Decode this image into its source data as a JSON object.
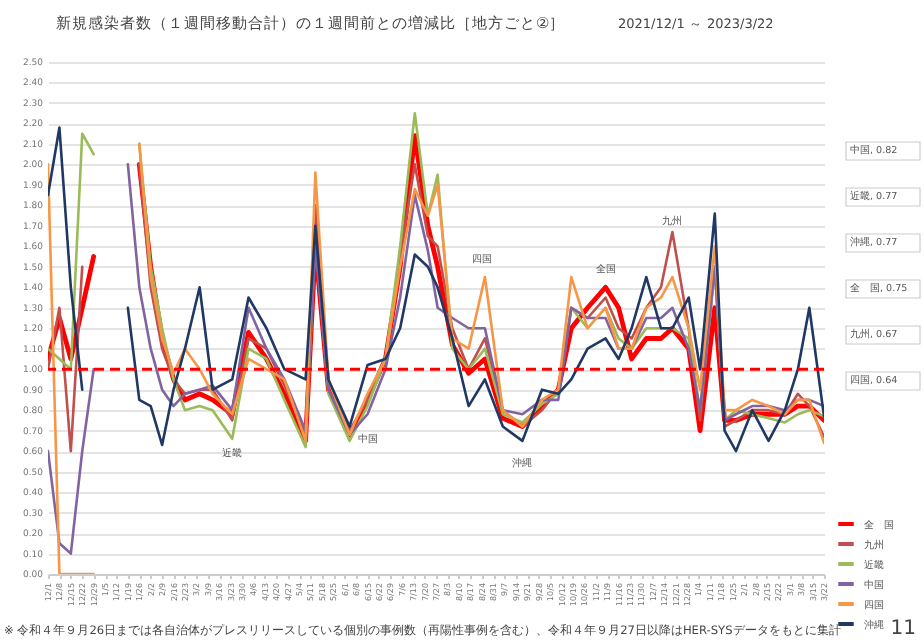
{
  "chart_data": {
    "type": "line",
    "title": "新規感染者数（１週間移動合計）の１週間前との増減比［地方ごと②］",
    "subtitle": "2021/12/1 ～ 2023/3/22",
    "x": [
      "2021-12-01",
      "2021-12-08",
      "2021-12-15",
      "2021-12-22",
      "2021-12-29",
      "2022-01-05",
      "2022-01-12",
      "2022-01-19",
      "2022-01-26",
      "2022-02-02",
      "2022-02-09",
      "2022-02-16",
      "2022-02-23",
      "2022-03-04",
      "2022-03-12",
      "2022-03-24",
      "2022-04-03",
      "2022-04-14",
      "2022-04-25",
      "2022-05-08",
      "2022-05-14",
      "2022-05-22",
      "2022-06-04",
      "2022-06-15",
      "2022-06-26",
      "2022-07-05",
      "2022-07-14",
      "2022-07-22",
      "2022-07-28",
      "2022-08-06",
      "2022-08-16",
      "2022-08-26",
      "2022-09-06",
      "2022-09-18",
      "2022-09-30",
      "2022-10-10",
      "2022-10-18",
      "2022-10-28",
      "2022-11-08",
      "2022-11-16",
      "2022-11-24",
      "2022-12-03",
      "2022-12-12",
      "2022-12-19",
      "2022-12-29",
      "2023-01-05",
      "2023-01-14",
      "2023-01-20",
      "2023-01-27",
      "2023-02-06",
      "2023-02-16",
      "2023-02-26",
      "2023-03-06",
      "2023-03-13",
      "2023-03-22"
    ],
    "series": [
      {
        "name": "全　国",
        "color": "#ff0000",
        "values": [
          1.05,
          1.25,
          1.05,
          1.3,
          1.55,
          null,
          null,
          null,
          2.0,
          1.5,
          1.15,
          0.95,
          0.85,
          0.88,
          0.85,
          0.78,
          1.18,
          1.05,
          0.88,
          0.65,
          1.6,
          0.9,
          0.68,
          0.85,
          1.05,
          1.5,
          2.14,
          1.7,
          1.5,
          1.12,
          0.98,
          1.05,
          0.76,
          0.72,
          0.82,
          0.9,
          1.2,
          1.3,
          1.4,
          1.3,
          1.05,
          1.15,
          1.15,
          1.2,
          1.1,
          0.7,
          1.3,
          0.75,
          0.75,
          0.78,
          0.78,
          0.78,
          0.82,
          0.82,
          0.75
        ]
      },
      {
        "name": "九州",
        "color": "#c0504d",
        "values": [
          1.0,
          1.3,
          0.6,
          1.5,
          null,
          null,
          null,
          null,
          2.0,
          1.4,
          1.1,
          0.95,
          0.88,
          0.9,
          0.9,
          0.75,
          1.15,
          1.1,
          0.92,
          0.68,
          1.8,
          0.9,
          0.7,
          0.85,
          1.05,
          1.55,
          2.0,
          1.65,
          1.6,
          1.2,
          1.0,
          1.15,
          0.8,
          0.72,
          0.8,
          0.9,
          1.3,
          1.25,
          1.35,
          1.2,
          1.15,
          1.3,
          1.4,
          1.67,
          1.2,
          0.75,
          1.5,
          0.72,
          0.75,
          0.8,
          0.8,
          0.78,
          0.88,
          0.82,
          0.67
        ]
      },
      {
        "name": "近畿",
        "color": "#9bbb59",
        "values": [
          1.1,
          1.05,
          1.0,
          2.15,
          2.05,
          null,
          null,
          null,
          2.1,
          1.5,
          1.2,
          0.95,
          0.8,
          0.82,
          0.8,
          0.66,
          1.1,
          1.05,
          0.85,
          0.62,
          1.65,
          0.88,
          0.65,
          0.82,
          1.05,
          1.6,
          2.25,
          1.75,
          1.95,
          1.1,
          1.0,
          1.1,
          0.78,
          0.74,
          0.83,
          0.88,
          1.3,
          1.2,
          1.3,
          1.15,
          1.1,
          1.2,
          1.2,
          1.2,
          1.15,
          0.8,
          1.5,
          0.75,
          0.8,
          0.78,
          0.76,
          0.74,
          0.78,
          0.8,
          0.77
        ]
      },
      {
        "name": "中国",
        "color": "#8064a2",
        "values": [
          0.6,
          0.15,
          0.1,
          0.6,
          1.0,
          null,
          null,
          2.0,
          1.4,
          1.1,
          0.9,
          0.82,
          0.88,
          0.9,
          0.92,
          0.8,
          1.3,
          1.1,
          0.95,
          0.7,
          1.6,
          0.9,
          0.68,
          0.78,
          1.0,
          1.35,
          1.85,
          1.58,
          1.3,
          1.25,
          1.2,
          1.2,
          0.8,
          0.78,
          0.85,
          0.85,
          1.3,
          1.25,
          1.25,
          1.1,
          1.1,
          1.25,
          1.25,
          1.3,
          1.1,
          0.8,
          1.5,
          0.75,
          0.78,
          0.82,
          0.82,
          0.8,
          0.85,
          0.85,
          0.82
        ]
      },
      {
        "name": "四国",
        "color": "#f79646",
        "values": [
          2.0,
          0.0,
          0.0,
          0.0,
          0.0,
          null,
          null,
          null,
          2.1,
          1.45,
          1.15,
          0.98,
          1.1,
          1.0,
          0.88,
          0.78,
          1.05,
          1.0,
          0.95,
          0.65,
          1.96,
          0.95,
          0.68,
          0.88,
          1.05,
          1.5,
          1.88,
          1.75,
          1.9,
          1.15,
          1.1,
          1.45,
          0.8,
          0.72,
          0.85,
          0.9,
          1.45,
          1.2,
          1.3,
          1.1,
          1.1,
          1.3,
          1.35,
          1.45,
          1.2,
          0.9,
          1.6,
          0.8,
          0.8,
          0.85,
          0.82,
          0.78,
          0.85,
          0.85,
          0.64
        ]
      },
      {
        "name": "沖縄",
        "color": "#1f3864",
        "values": [
          1.85,
          2.18,
          1.4,
          0.9,
          null,
          null,
          null,
          1.3,
          0.85,
          0.82,
          0.63,
          0.9,
          1.1,
          1.4,
          0.9,
          0.95,
          1.35,
          1.2,
          1.0,
          0.95,
          1.7,
          0.95,
          0.72,
          1.02,
          1.05,
          1.2,
          1.56,
          1.5,
          1.4,
          1.15,
          0.82,
          0.95,
          0.72,
          0.65,
          0.9,
          0.88,
          0.95,
          1.1,
          1.15,
          1.05,
          1.2,
          1.45,
          1.2,
          1.2,
          1.35,
          1.0,
          1.76,
          0.7,
          0.6,
          0.8,
          0.65,
          0.8,
          1.0,
          1.3,
          0.77
        ]
      }
    ],
    "xlim": [
      "2021-12-01",
      "2023-03-22"
    ],
    "xticks": [
      {
        "value": "2021-12-01",
        "label": "12/1"
      },
      {
        "value": "2021-12-08",
        "label": "12/8"
      },
      {
        "value": "2021-12-15",
        "label": "12/15"
      },
      {
        "value": "2021-12-22",
        "label": "12/22"
      },
      {
        "value": "2021-12-29",
        "label": "12/29"
      },
      {
        "value": "2022-01-05",
        "label": "1/5"
      },
      {
        "value": "2022-01-12",
        "label": "1/12"
      },
      {
        "value": "2022-01-19",
        "label": "1/19"
      },
      {
        "value": "2022-01-26",
        "label": "1/26"
      },
      {
        "value": "2022-02-02",
        "label": "2/2"
      },
      {
        "value": "2022-02-09",
        "label": "2/9"
      },
      {
        "value": "2022-02-16",
        "label": "2/16"
      },
      {
        "value": "2022-02-23",
        "label": "2/23"
      },
      {
        "value": "2022-03-02",
        "label": "3/2"
      },
      {
        "value": "2022-03-09",
        "label": "3/9"
      },
      {
        "value": "2022-03-16",
        "label": "3/16"
      },
      {
        "value": "2022-03-23",
        "label": "3/23"
      },
      {
        "value": "2022-03-30",
        "label": "3/30"
      },
      {
        "value": "2022-04-06",
        "label": "4/6"
      },
      {
        "value": "2022-04-13",
        "label": "4/13"
      },
      {
        "value": "2022-04-20",
        "label": "4/20"
      },
      {
        "value": "2022-04-27",
        "label": "4/27"
      },
      {
        "value": "2022-05-04",
        "label": "5/4"
      },
      {
        "value": "2022-05-11",
        "label": "5/11"
      },
      {
        "value": "2022-05-18",
        "label": "5/18"
      },
      {
        "value": "2022-05-25",
        "label": "5/25"
      },
      {
        "value": "2022-06-01",
        "label": "6/1"
      },
      {
        "value": "2022-06-08",
        "label": "6/8"
      },
      {
        "value": "2022-06-15",
        "label": "6/15"
      },
      {
        "value": "2022-06-22",
        "label": "6/22"
      },
      {
        "value": "2022-06-29",
        "label": "6/29"
      },
      {
        "value": "2022-07-06",
        "label": "7/6"
      },
      {
        "value": "2022-07-13",
        "label": "7/13"
      },
      {
        "value": "2022-07-20",
        "label": "7/20"
      },
      {
        "value": "2022-07-27",
        "label": "7/27"
      },
      {
        "value": "2022-08-03",
        "label": "8/3"
      },
      {
        "value": "2022-08-10",
        "label": "8/10"
      },
      {
        "value": "2022-08-17",
        "label": "8/17"
      },
      {
        "value": "2022-08-24",
        "label": "8/24"
      },
      {
        "value": "2022-08-31",
        "label": "8/31"
      },
      {
        "value": "2022-09-07",
        "label": "9/7"
      },
      {
        "value": "2022-09-14",
        "label": "9/14"
      },
      {
        "value": "2022-09-21",
        "label": "9/21"
      },
      {
        "value": "2022-09-28",
        "label": "9/28"
      },
      {
        "value": "2022-10-05",
        "label": "10/5"
      },
      {
        "value": "2022-10-12",
        "label": "10/12"
      },
      {
        "value": "2022-10-19",
        "label": "10/19"
      },
      {
        "value": "2022-10-26",
        "label": "10/26"
      },
      {
        "value": "2022-11-02",
        "label": "11/2"
      },
      {
        "value": "2022-11-09",
        "label": "11/9"
      },
      {
        "value": "2022-11-16",
        "label": "11/16"
      },
      {
        "value": "2022-11-23",
        "label": "11/23"
      },
      {
        "value": "2022-11-30",
        "label": "11/30"
      },
      {
        "value": "2022-12-07",
        "label": "12/7"
      },
      {
        "value": "2022-12-14",
        "label": "12/14"
      },
      {
        "value": "2022-12-21",
        "label": "12/21"
      },
      {
        "value": "2022-12-28",
        "label": "12/28"
      },
      {
        "value": "2023-01-04",
        "label": "1/4"
      },
      {
        "value": "2023-01-11",
        "label": "1/11"
      },
      {
        "value": "2023-01-18",
        "label": "1/18"
      },
      {
        "value": "2023-01-25",
        "label": "1/25"
      },
      {
        "value": "2023-02-01",
        "label": "2/1"
      },
      {
        "value": "2023-02-08",
        "label": "2/8"
      },
      {
        "value": "2023-02-15",
        "label": "2/15"
      },
      {
        "value": "2023-02-22",
        "label": "2/22"
      },
      {
        "value": "2023-03-01",
        "label": "3/1"
      },
      {
        "value": "2023-03-08",
        "label": "3/8"
      },
      {
        "value": "2023-03-15",
        "label": "3/15"
      },
      {
        "value": "2023-03-22",
        "label": "3/22"
      }
    ],
    "ylim": [
      0,
      2.5
    ],
    "yticks": [
      {
        "value": 0,
        "label": "0.00"
      },
      {
        "value": 0.1,
        "label": "0.10"
      },
      {
        "value": 0.2,
        "label": "0.20"
      },
      {
        "value": 0.3,
        "label": "0.30"
      },
      {
        "value": 0.4,
        "label": "0.40"
      },
      {
        "value": 0.5,
        "label": "0.50"
      },
      {
        "value": 0.6,
        "label": "0.60"
      },
      {
        "value": 0.7,
        "label": "0.70"
      },
      {
        "value": 0.8,
        "label": "0.80"
      },
      {
        "value": 0.9,
        "label": "0.90"
      },
      {
        "value": 1,
        "label": "1.00"
      },
      {
        "value": 1.1,
        "label": "1.10"
      },
      {
        "value": 1.2,
        "label": "1.20"
      },
      {
        "value": 1.3,
        "label": "1.30"
      },
      {
        "value": 1.4,
        "label": "1.40"
      },
      {
        "value": 1.5,
        "label": "1.50"
      },
      {
        "value": 1.6,
        "label": "1.60"
      },
      {
        "value": 1.7,
        "label": "1.70"
      },
      {
        "value": 1.8,
        "label": "1.80"
      },
      {
        "value": 1.9,
        "label": "1.90"
      },
      {
        "value": 2,
        "label": "2.00"
      },
      {
        "value": 2.1,
        "label": "2.10"
      },
      {
        "value": 2.2,
        "label": "2.20"
      },
      {
        "value": 2.3,
        "label": "2.30"
      },
      {
        "value": 2.4,
        "label": "2.40"
      },
      {
        "value": 2.5,
        "label": "2.50"
      }
    ],
    "grid": "y",
    "legend": "bottom right",
    "ref_lines": [
      {
        "axis": "y",
        "value": 1.0,
        "color": "#ff0000",
        "line_style": "dashed"
      }
    ],
    "annotations": [
      "近畿",
      "中国",
      "沖縄",
      "四国",
      "全国",
      "九州",
      "中国, 0.82",
      "近畿, 0.77",
      "沖縄, 0.77",
      "全　国, 0.75",
      "九州, 0.67",
      "四国, 0.64",
      "※ 令和４年９月26日までは各自治体がプレスリリースしている個別の事例数（再陽性事例を含む）、令和４年９月27日以降はHER-SYSデータをもとに集計",
      "11"
    ]
  }
}
